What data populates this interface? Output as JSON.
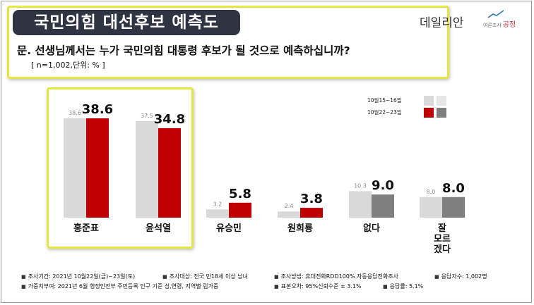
{
  "header": {
    "title": "국민의힘 대선후보 예측도",
    "question": "문. 선생님께서는 누가 국민의힘 대통령 후보가 될 것으로 예측하십니까?",
    "meta": "[ n=1,002,단위: % ]"
  },
  "logos": {
    "primary": "데일리안",
    "secondary_small": "여론조사",
    "secondary": "공정"
  },
  "colors": {
    "previous_light": "#d9d9d9",
    "current_red": "#c00000",
    "current_gray": "#7f7f7f",
    "highlight": "#e6e640",
    "title_bg": "#2f3442"
  },
  "chart_data": {
    "type": "bar",
    "categories": [
      "홍준표",
      "윤석열",
      "유승민",
      "원희룡",
      "없다",
      "잘\n모르\n겠다"
    ],
    "series": [
      {
        "name": "10월15~16일",
        "values": [
          38.6,
          37.5,
          3.2,
          2.4,
          10.3,
          8.0
        ]
      },
      {
        "name": "10월22~23일",
        "values": [
          38.6,
          34.8,
          5.8,
          3.8,
          9.0,
          8.0
        ]
      }
    ],
    "value_labels_previous": [
      "38.6",
      "37.5",
      "3.2",
      "2.4",
      "10.3",
      "8.0"
    ],
    "value_labels_current": [
      "38.6",
      "34.8",
      "5.8",
      "3.8",
      "9.0",
      "8.0"
    ],
    "ylim": [
      0,
      45
    ],
    "grid": false,
    "legend_position": "top-right"
  },
  "legend": {
    "items": [
      {
        "label": "10월15~16일"
      },
      {
        "label": "10월22~23일"
      }
    ]
  },
  "footer": {
    "line1": [
      "조사기간: 2021년 10월22일(금)~23일(토)",
      "조사대상: 전국 만18세 이상 남녀",
      "조사방법: 휴대전화RDD100% 자동응답전화조사",
      "응답자수: 1,002명"
    ],
    "line2": [
      "가중치부여: 2021년 6월 행정안전부 주민등록 인구 기준 성,연령, 지역별 림가중",
      "표본오차: 95%신뢰수준 ± 3.1%",
      "응답률: 5.1%"
    ]
  }
}
